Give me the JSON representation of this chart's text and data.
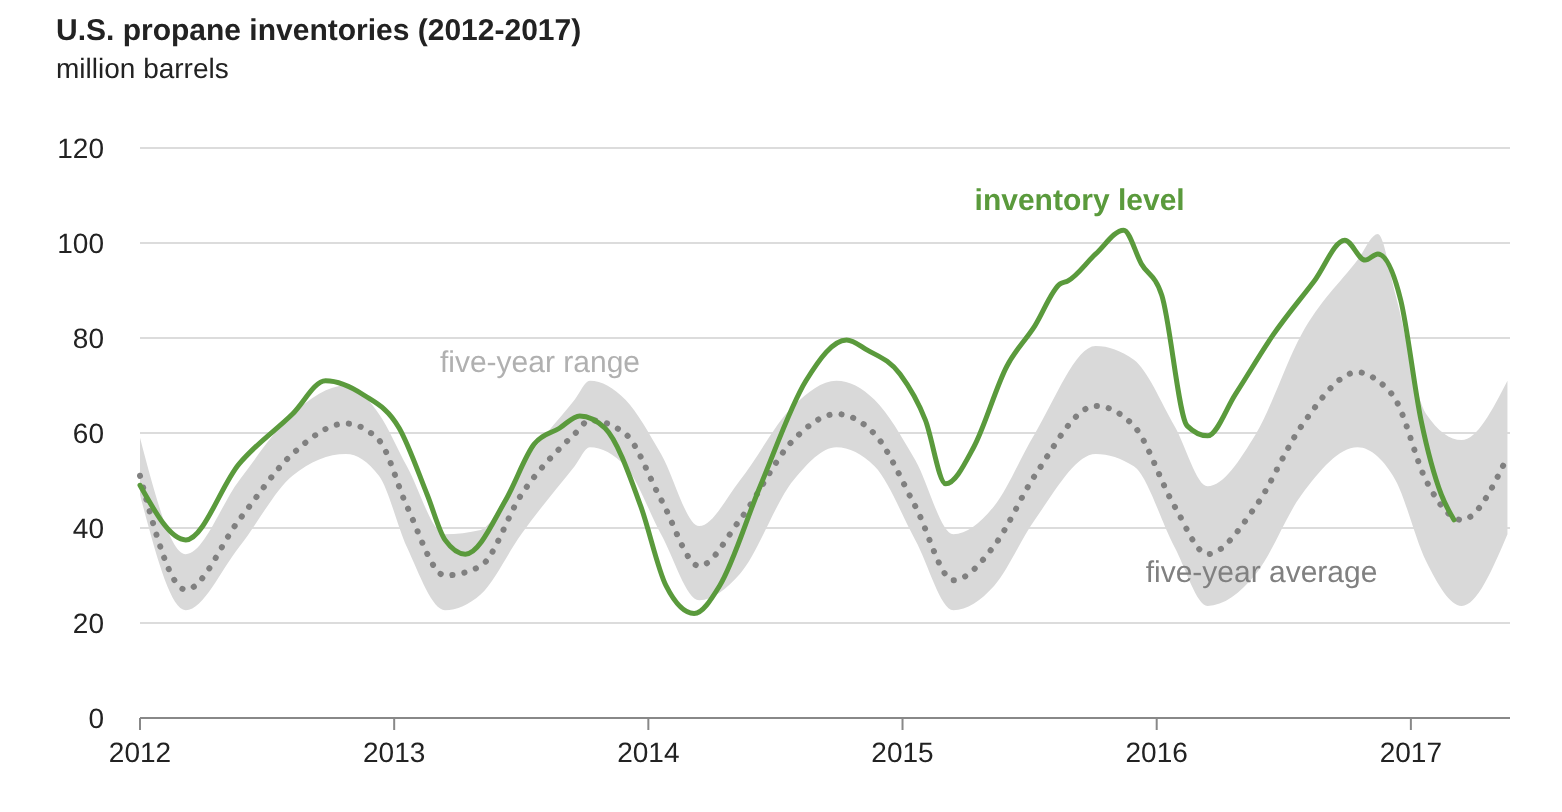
{
  "chart_data": {
    "type": "line",
    "title": "U.S. propane inventories (2012-2017)",
    "ylabel": "million barrels",
    "xlim": [
      2012,
      2017.39
    ],
    "xticks": [
      2012,
      2013,
      2014,
      2015,
      2016,
      2017
    ],
    "ylim": [
      0,
      120
    ],
    "yticks": [
      0,
      20,
      40,
      60,
      80,
      100,
      120
    ],
    "grid": "y",
    "annotations": [
      "five-year range"
    ],
    "series": [
      {
        "name": "five-year average",
        "color": "#808080",
        "line_style": "dotted",
        "x": [
          2012,
          2012.18,
          2012.39,
          2012.6,
          2012.81,
          2012.94,
          2013.05,
          2013.2,
          2013.34,
          2013.5,
          2013.71,
          2013.77,
          2013.91,
          2014.05,
          2014.2,
          2014.36,
          2014.57,
          2014.74,
          2014.89,
          2015.05,
          2015.2,
          2015.36,
          2015.52,
          2015.76,
          2015.91,
          2016.07,
          2016.2,
          2016.39,
          2016.57,
          2016.79,
          2016.87,
          2016.94,
          2017.06,
          2017.2,
          2017.38
        ],
        "values": [
          51,
          27,
          41.7,
          55.6,
          62,
          58.5,
          44.6,
          30,
          32,
          47,
          59.8,
          62.7,
          59.8,
          46,
          32,
          41.7,
          58.5,
          64,
          59.8,
          44.6,
          29,
          36.2,
          51,
          65.7,
          61.5,
          44.6,
          34.5,
          44.6,
          61.5,
          72.8,
          71,
          67,
          50,
          41.7,
          55
        ],
        "lower": [
          47,
          22.7,
          36,
          51,
          55.6,
          51,
          36,
          22.7,
          26,
          38.7,
          53,
          57,
          53,
          38.7,
          24.8,
          30.3,
          50,
          57,
          53,
          37.5,
          22.7,
          27.8,
          41.7,
          55.6,
          53,
          36,
          23.6,
          30.3,
          47,
          57,
          55,
          50,
          33,
          23.6,
          38.7
        ],
        "upper": [
          59,
          34.5,
          50,
          64,
          70,
          64,
          53,
          38.7,
          39.6,
          53,
          67,
          71,
          67,
          55.6,
          40.4,
          50,
          65.7,
          71,
          67,
          54.3,
          38.7,
          44.6,
          59.8,
          78.3,
          75.4,
          61.5,
          48.8,
          59.8,
          80.8,
          96.4,
          101.9,
          89,
          64,
          58.5,
          71
        ]
      },
      {
        "name": "inventory level",
        "color": "#5a9a3c",
        "line_style": "solid",
        "x": [
          2012,
          2012.18,
          2012.39,
          2012.6,
          2012.73,
          2012.88,
          2013.02,
          2013.13,
          2013.2,
          2013.28,
          2013.44,
          2013.55,
          2013.65,
          2013.73,
          2013.83,
          2013.97,
          2014.07,
          2014.18,
          2014.28,
          2014.44,
          2014.62,
          2014.78,
          2014.86,
          2014.99,
          2015.09,
          2015.17,
          2015.28,
          2015.41,
          2015.52,
          2015.62,
          2015.65,
          2015.76,
          2015.87,
          2015.94,
          2016.02,
          2016.12,
          2016.2,
          2016.31,
          2016.46,
          2016.62,
          2016.74,
          2016.82,
          2016.87,
          2016.96,
          2017.04,
          2017.12,
          2017.17
        ],
        "values": [
          49,
          37.5,
          53.5,
          64,
          71,
          68,
          61,
          47,
          37.5,
          34.5,
          46,
          57.6,
          61,
          63.6,
          61,
          44.6,
          27.8,
          22,
          27.8,
          48.8,
          71,
          79.6,
          77.5,
          72.4,
          62.7,
          49.3,
          57,
          74,
          82.5,
          91.4,
          92,
          97.7,
          102.7,
          95.6,
          89,
          61.5,
          59.4,
          68.2,
          80.8,
          92,
          100.6,
          96.4,
          97.7,
          88,
          62.7,
          47,
          41.7
        ]
      }
    ]
  }
}
